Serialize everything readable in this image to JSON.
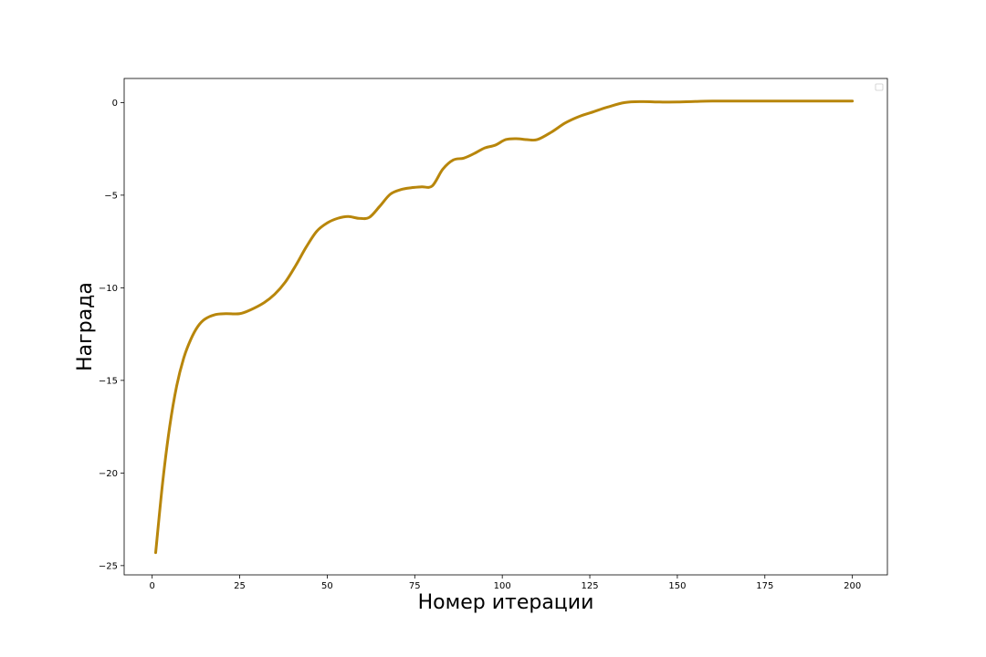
{
  "chart_data": {
    "type": "line",
    "title": "",
    "xlabel": "Номер итерации",
    "ylabel": "Награда",
    "xlim": [
      -8,
      210
    ],
    "ylim": [
      -25.5,
      1.3
    ],
    "xticks": [
      0,
      25,
      50,
      75,
      100,
      125,
      150,
      175,
      200
    ],
    "yticks": [
      0,
      -5,
      -10,
      -15,
      -20,
      -25
    ],
    "grid": false,
    "legend": {
      "placement": "top-right",
      "entries": []
    },
    "series": [
      {
        "color": "#b8860b",
        "x": [
          1,
          3,
          5,
          7,
          9,
          11,
          13,
          15,
          18,
          21,
          25,
          28,
          32,
          35,
          38,
          41,
          44,
          47,
          50,
          53,
          56,
          59,
          62,
          65,
          68,
          71,
          74,
          77,
          80,
          83,
          86,
          89,
          92,
          95,
          98,
          101,
          104,
          107,
          110,
          114,
          118,
          122,
          126,
          130,
          135,
          140,
          145,
          150,
          160,
          170,
          180,
          190,
          200
        ],
        "y": [
          -24.3,
          -20.5,
          -17.5,
          -15.3,
          -13.8,
          -12.8,
          -12.1,
          -11.7,
          -11.45,
          -11.4,
          -11.4,
          -11.2,
          -10.8,
          -10.35,
          -9.7,
          -8.8,
          -7.8,
          -6.95,
          -6.5,
          -6.25,
          -6.15,
          -6.25,
          -6.2,
          -5.6,
          -4.95,
          -4.7,
          -4.6,
          -4.55,
          -4.5,
          -3.6,
          -3.1,
          -3.0,
          -2.75,
          -2.45,
          -2.3,
          -2.0,
          -1.95,
          -2.0,
          -2.0,
          -1.6,
          -1.1,
          -0.75,
          -0.5,
          -0.25,
          0.0,
          0.05,
          0.03,
          0.03,
          0.08,
          0.08,
          0.08,
          0.08,
          0.08
        ]
      }
    ]
  }
}
